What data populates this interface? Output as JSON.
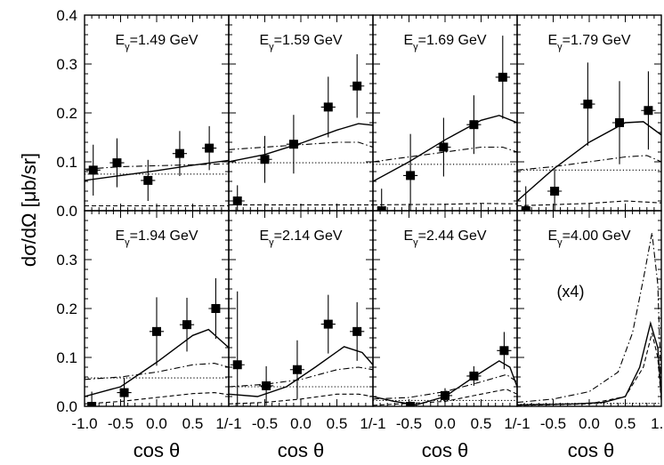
{
  "chart_data": {
    "type": "scatter",
    "ylabel": "dσ/dΩ [μb/sr]",
    "xlabel": "cos θ",
    "xlim": [
      -1.0,
      1.0
    ],
    "ylim": [
      0.0,
      0.4
    ],
    "layout": {
      "rows": 2,
      "cols": 4
    },
    "x_tick_labels": [
      "-1.0",
      "-0.5",
      "0.0",
      "0.5",
      "1/-1",
      "-0.5",
      "0.0",
      "0.5",
      "1/-1",
      "-0.5",
      "0.0",
      "0.5",
      "1/-1",
      "-0.5",
      "0.0",
      "0.5",
      "1.0"
    ],
    "y_tick_labels_top": [
      "0.0",
      "0.1",
      "0.2",
      "0.3",
      "0.4"
    ],
    "y_tick_labels_bottom": [
      "0.0",
      "0.1",
      "0.2",
      "0.3"
    ],
    "panels": [
      {
        "label_main": "E",
        "label_sub": "γ",
        "label_rest": "=1.49 GeV",
        "points": [
          {
            "x": -0.88,
            "y": 0.083,
            "yerr": 0.052
          },
          {
            "x": -0.55,
            "y": 0.098,
            "yerr": 0.05
          },
          {
            "x": -0.12,
            "y": 0.062,
            "yerr": 0.042
          },
          {
            "x": 0.32,
            "y": 0.117,
            "yerr": 0.046
          },
          {
            "x": 0.73,
            "y": 0.128,
            "yerr": 0.045
          }
        ],
        "curves": {
          "solid": [
            [
              -1,
              0.062
            ],
            [
              -0.5,
              0.072
            ],
            [
              0,
              0.082
            ],
            [
              0.5,
              0.093
            ],
            [
              1,
              0.103
            ]
          ],
          "dashdot": [
            [
              -1,
              0.085
            ],
            [
              -0.5,
              0.09
            ],
            [
              0,
              0.092
            ],
            [
              0.5,
              0.094
            ],
            [
              1,
              0.096
            ]
          ],
          "dotted": [
            [
              -1,
              0.075
            ],
            [
              0,
              0.075
            ],
            [
              1,
              0.075
            ]
          ],
          "dashed": [
            [
              -1,
              0.01
            ],
            [
              0,
              0.01
            ],
            [
              1,
              0.01
            ]
          ]
        }
      },
      {
        "label_main": "E",
        "label_sub": "γ",
        "label_rest": "=1.59 GeV",
        "points": [
          {
            "x": -0.88,
            "y": 0.02,
            "yerr": 0.032
          },
          {
            "x": -0.5,
            "y": 0.105,
            "yerr": 0.048
          },
          {
            "x": -0.1,
            "y": 0.136,
            "yerr": 0.06
          },
          {
            "x": 0.38,
            "y": 0.212,
            "yerr": 0.062
          },
          {
            "x": 0.78,
            "y": 0.255,
            "yerr": 0.065
          }
        ],
        "curves": {
          "solid": [
            [
              -1,
              0.1
            ],
            [
              -0.5,
              0.115
            ],
            [
              0,
              0.138
            ],
            [
              0.5,
              0.165
            ],
            [
              0.8,
              0.178
            ],
            [
              1,
              0.175
            ]
          ],
          "dashdot": [
            [
              -1,
              0.125
            ],
            [
              -0.5,
              0.13
            ],
            [
              0,
              0.135
            ],
            [
              0.5,
              0.14
            ],
            [
              0.8,
              0.14
            ],
            [
              1,
              0.13
            ]
          ],
          "dotted": [
            [
              -1,
              0.098
            ],
            [
              0,
              0.098
            ],
            [
              1,
              0.098
            ]
          ],
          "dashed": [
            [
              -1,
              0.012
            ],
            [
              0,
              0.012
            ],
            [
              1,
              0.012
            ]
          ]
        }
      },
      {
        "label_main": "E",
        "label_sub": "γ",
        "label_rest": "=1.69 GeV",
        "points": [
          {
            "x": -0.88,
            "y": 0.0,
            "yerr": 0.045
          },
          {
            "x": -0.48,
            "y": 0.072,
            "yerr": 0.085
          },
          {
            "x": -0.02,
            "y": 0.13,
            "yerr": 0.06
          },
          {
            "x": 0.4,
            "y": 0.176,
            "yerr": 0.06
          },
          {
            "x": 0.8,
            "y": 0.273,
            "yerr": 0.085
          }
        ],
        "curves": {
          "solid": [
            [
              -1,
              0.06
            ],
            [
              -0.5,
              0.1
            ],
            [
              0,
              0.145
            ],
            [
              0.5,
              0.185
            ],
            [
              0.75,
              0.195
            ],
            [
              1,
              0.18
            ]
          ],
          "dashdot": [
            [
              -1,
              0.1
            ],
            [
              -0.5,
              0.11
            ],
            [
              0,
              0.12
            ],
            [
              0.5,
              0.13
            ],
            [
              0.8,
              0.13
            ],
            [
              1,
              0.12
            ]
          ],
          "dotted": [
            [
              -1,
              0.095
            ],
            [
              0,
              0.095
            ],
            [
              1,
              0.095
            ]
          ],
          "dashed": [
            [
              -1,
              0.012
            ],
            [
              0,
              0.013
            ],
            [
              0.5,
              0.015
            ],
            [
              1,
              0.014
            ]
          ]
        }
      },
      {
        "label_main": "E",
        "label_sub": "γ",
        "label_rest": "=1.79 GeV",
        "points": [
          {
            "x": -0.88,
            "y": 0.0,
            "yerr": 0.05
          },
          {
            "x": -0.48,
            "y": 0.04,
            "yerr": 0.045
          },
          {
            "x": -0.02,
            "y": 0.218,
            "yerr": 0.085
          },
          {
            "x": 0.42,
            "y": 0.18,
            "yerr": 0.085
          },
          {
            "x": 0.82,
            "y": 0.205,
            "yerr": 0.08
          }
        ],
        "curves": {
          "solid": [
            [
              -1,
              0.02
            ],
            [
              -0.5,
              0.085
            ],
            [
              0,
              0.14
            ],
            [
              0.5,
              0.18
            ],
            [
              0.75,
              0.182
            ],
            [
              1,
              0.155
            ]
          ],
          "dashdot": [
            [
              -1,
              0.083
            ],
            [
              -0.5,
              0.09
            ],
            [
              0,
              0.1
            ],
            [
              0.5,
              0.11
            ],
            [
              0.8,
              0.113
            ],
            [
              1,
              0.1
            ]
          ],
          "dotted": [
            [
              -1,
              0.083
            ],
            [
              0,
              0.083
            ],
            [
              1,
              0.083
            ]
          ],
          "dashed": [
            [
              -1,
              0.01
            ],
            [
              0,
              0.015
            ],
            [
              0.5,
              0.02
            ],
            [
              1,
              0.016
            ]
          ]
        }
      },
      {
        "label_main": "E",
        "label_sub": "γ",
        "label_rest": "=1.94 GeV",
        "points": [
          {
            "x": -0.9,
            "y": 0.0,
            "yerr": 0.03
          },
          {
            "x": -0.45,
            "y": 0.028,
            "yerr": 0.03
          },
          {
            "x": 0.0,
            "y": 0.153,
            "yerr": 0.07
          },
          {
            "x": 0.42,
            "y": 0.167,
            "yerr": 0.055
          },
          {
            "x": 0.82,
            "y": 0.2,
            "yerr": 0.062
          }
        ],
        "curves": {
          "solid": [
            [
              -1,
              0.02
            ],
            [
              -0.5,
              0.04
            ],
            [
              0,
              0.09
            ],
            [
              0.5,
              0.145
            ],
            [
              0.72,
              0.157
            ],
            [
              1,
              0.12
            ]
          ],
          "dashdot": [
            [
              -1,
              0.055
            ],
            [
              -0.5,
              0.06
            ],
            [
              0,
              0.07
            ],
            [
              0.5,
              0.085
            ],
            [
              0.8,
              0.088
            ],
            [
              1,
              0.08
            ]
          ],
          "dotted": [
            [
              -1,
              0.058
            ],
            [
              0,
              0.058
            ],
            [
              1,
              0.058
            ]
          ],
          "dashed": [
            [
              -1,
              0.005
            ],
            [
              -0.5,
              0.01
            ],
            [
              0,
              0.018
            ],
            [
              0.5,
              0.026
            ],
            [
              0.8,
              0.028
            ],
            [
              1,
              0.024
            ]
          ]
        }
      },
      {
        "label_main": "E",
        "label_sub": "γ",
        "label_rest": "=2.14 GeV",
        "points": [
          {
            "x": -0.88,
            "y": 0.085,
            "yerr": 0.15
          },
          {
            "x": -0.48,
            "y": 0.042,
            "yerr": 0.04
          },
          {
            "x": -0.05,
            "y": 0.075,
            "yerr": 0.06
          },
          {
            "x": 0.38,
            "y": 0.168,
            "yerr": 0.06
          },
          {
            "x": 0.78,
            "y": 0.153,
            "yerr": 0.06
          }
        ],
        "curves": {
          "solid": [
            [
              -1,
              0.025
            ],
            [
              -0.6,
              0.02
            ],
            [
              -0.2,
              0.04
            ],
            [
              0.2,
              0.08
            ],
            [
              0.6,
              0.122
            ],
            [
              0.85,
              0.11
            ],
            [
              1,
              0.085
            ]
          ],
          "dashdot": [
            [
              -1,
              0.04
            ],
            [
              -0.5,
              0.045
            ],
            [
              0,
              0.055
            ],
            [
              0.5,
              0.075
            ],
            [
              0.8,
              0.08
            ],
            [
              1,
              0.075
            ]
          ],
          "dotted": [
            [
              -1,
              0.04
            ],
            [
              0,
              0.04
            ],
            [
              1,
              0.04
            ]
          ],
          "dashed": [
            [
              -1,
              0.005
            ],
            [
              -0.5,
              0.008
            ],
            [
              0,
              0.015
            ],
            [
              0.5,
              0.025
            ],
            [
              0.8,
              0.025
            ],
            [
              1,
              0.02
            ]
          ]
        }
      },
      {
        "label_main": "E",
        "label_sub": "γ",
        "label_rest": "=2.44 GeV",
        "points": [
          {
            "x": -0.48,
            "y": 0.0,
            "yerr": 0.01
          },
          {
            "x": 0.0,
            "y": 0.022,
            "yerr": 0.015
          },
          {
            "x": 0.4,
            "y": 0.062,
            "yerr": 0.02
          },
          {
            "x": 0.82,
            "y": 0.114,
            "yerr": 0.038
          }
        ],
        "curves": {
          "solid": [
            [
              -1,
              0.02
            ],
            [
              -0.7,
              0.01
            ],
            [
              -0.4,
              0.003
            ],
            [
              0,
              0.02
            ],
            [
              0.4,
              0.06
            ],
            [
              0.75,
              0.093
            ],
            [
              0.9,
              0.08
            ],
            [
              1,
              0.04
            ]
          ],
          "dashdot": [
            [
              -1,
              0.015
            ],
            [
              -0.5,
              0.018
            ],
            [
              0,
              0.03
            ],
            [
              0.5,
              0.05
            ],
            [
              0.85,
              0.065
            ],
            [
              1,
              0.05
            ]
          ],
          "dotted": [
            [
              -1,
              0.012
            ],
            [
              0,
              0.012
            ],
            [
              1,
              0.012
            ]
          ],
          "dashed": [
            [
              -1,
              0.002
            ],
            [
              0,
              0.01
            ],
            [
              0.5,
              0.025
            ],
            [
              0.85,
              0.035
            ],
            [
              1,
              0.025
            ]
          ]
        }
      },
      {
        "label_main": "E",
        "label_sub": "γ",
        "label_rest": "=4.00 GeV",
        "note": "(x4)",
        "points": [],
        "curves": {
          "solid": [
            [
              -1,
              0.003
            ],
            [
              -0.2,
              0.005
            ],
            [
              0.2,
              0.008
            ],
            [
              0.5,
              0.02
            ],
            [
              0.7,
              0.08
            ],
            [
              0.85,
              0.17
            ],
            [
              0.95,
              0.12
            ],
            [
              1,
              0.02
            ]
          ],
          "dashdot": [
            [
              -1,
              0.008
            ],
            [
              -0.5,
              0.015
            ],
            [
              0,
              0.03
            ],
            [
              0.4,
              0.07
            ],
            [
              0.6,
              0.15
            ],
            [
              0.75,
              0.26
            ],
            [
              0.87,
              0.355
            ],
            [
              0.95,
              0.25
            ],
            [
              1,
              0.03
            ]
          ],
          "dotted": [
            [
              -1,
              0.004
            ],
            [
              0,
              0.006
            ],
            [
              1,
              0.006
            ]
          ],
          "dashed": [
            [
              -1,
              0.002
            ],
            [
              0,
              0.005
            ],
            [
              0.5,
              0.02
            ],
            [
              0.75,
              0.08
            ],
            [
              0.87,
              0.15
            ],
            [
              0.95,
              0.1
            ],
            [
              1,
              0.01
            ]
          ]
        }
      }
    ]
  }
}
